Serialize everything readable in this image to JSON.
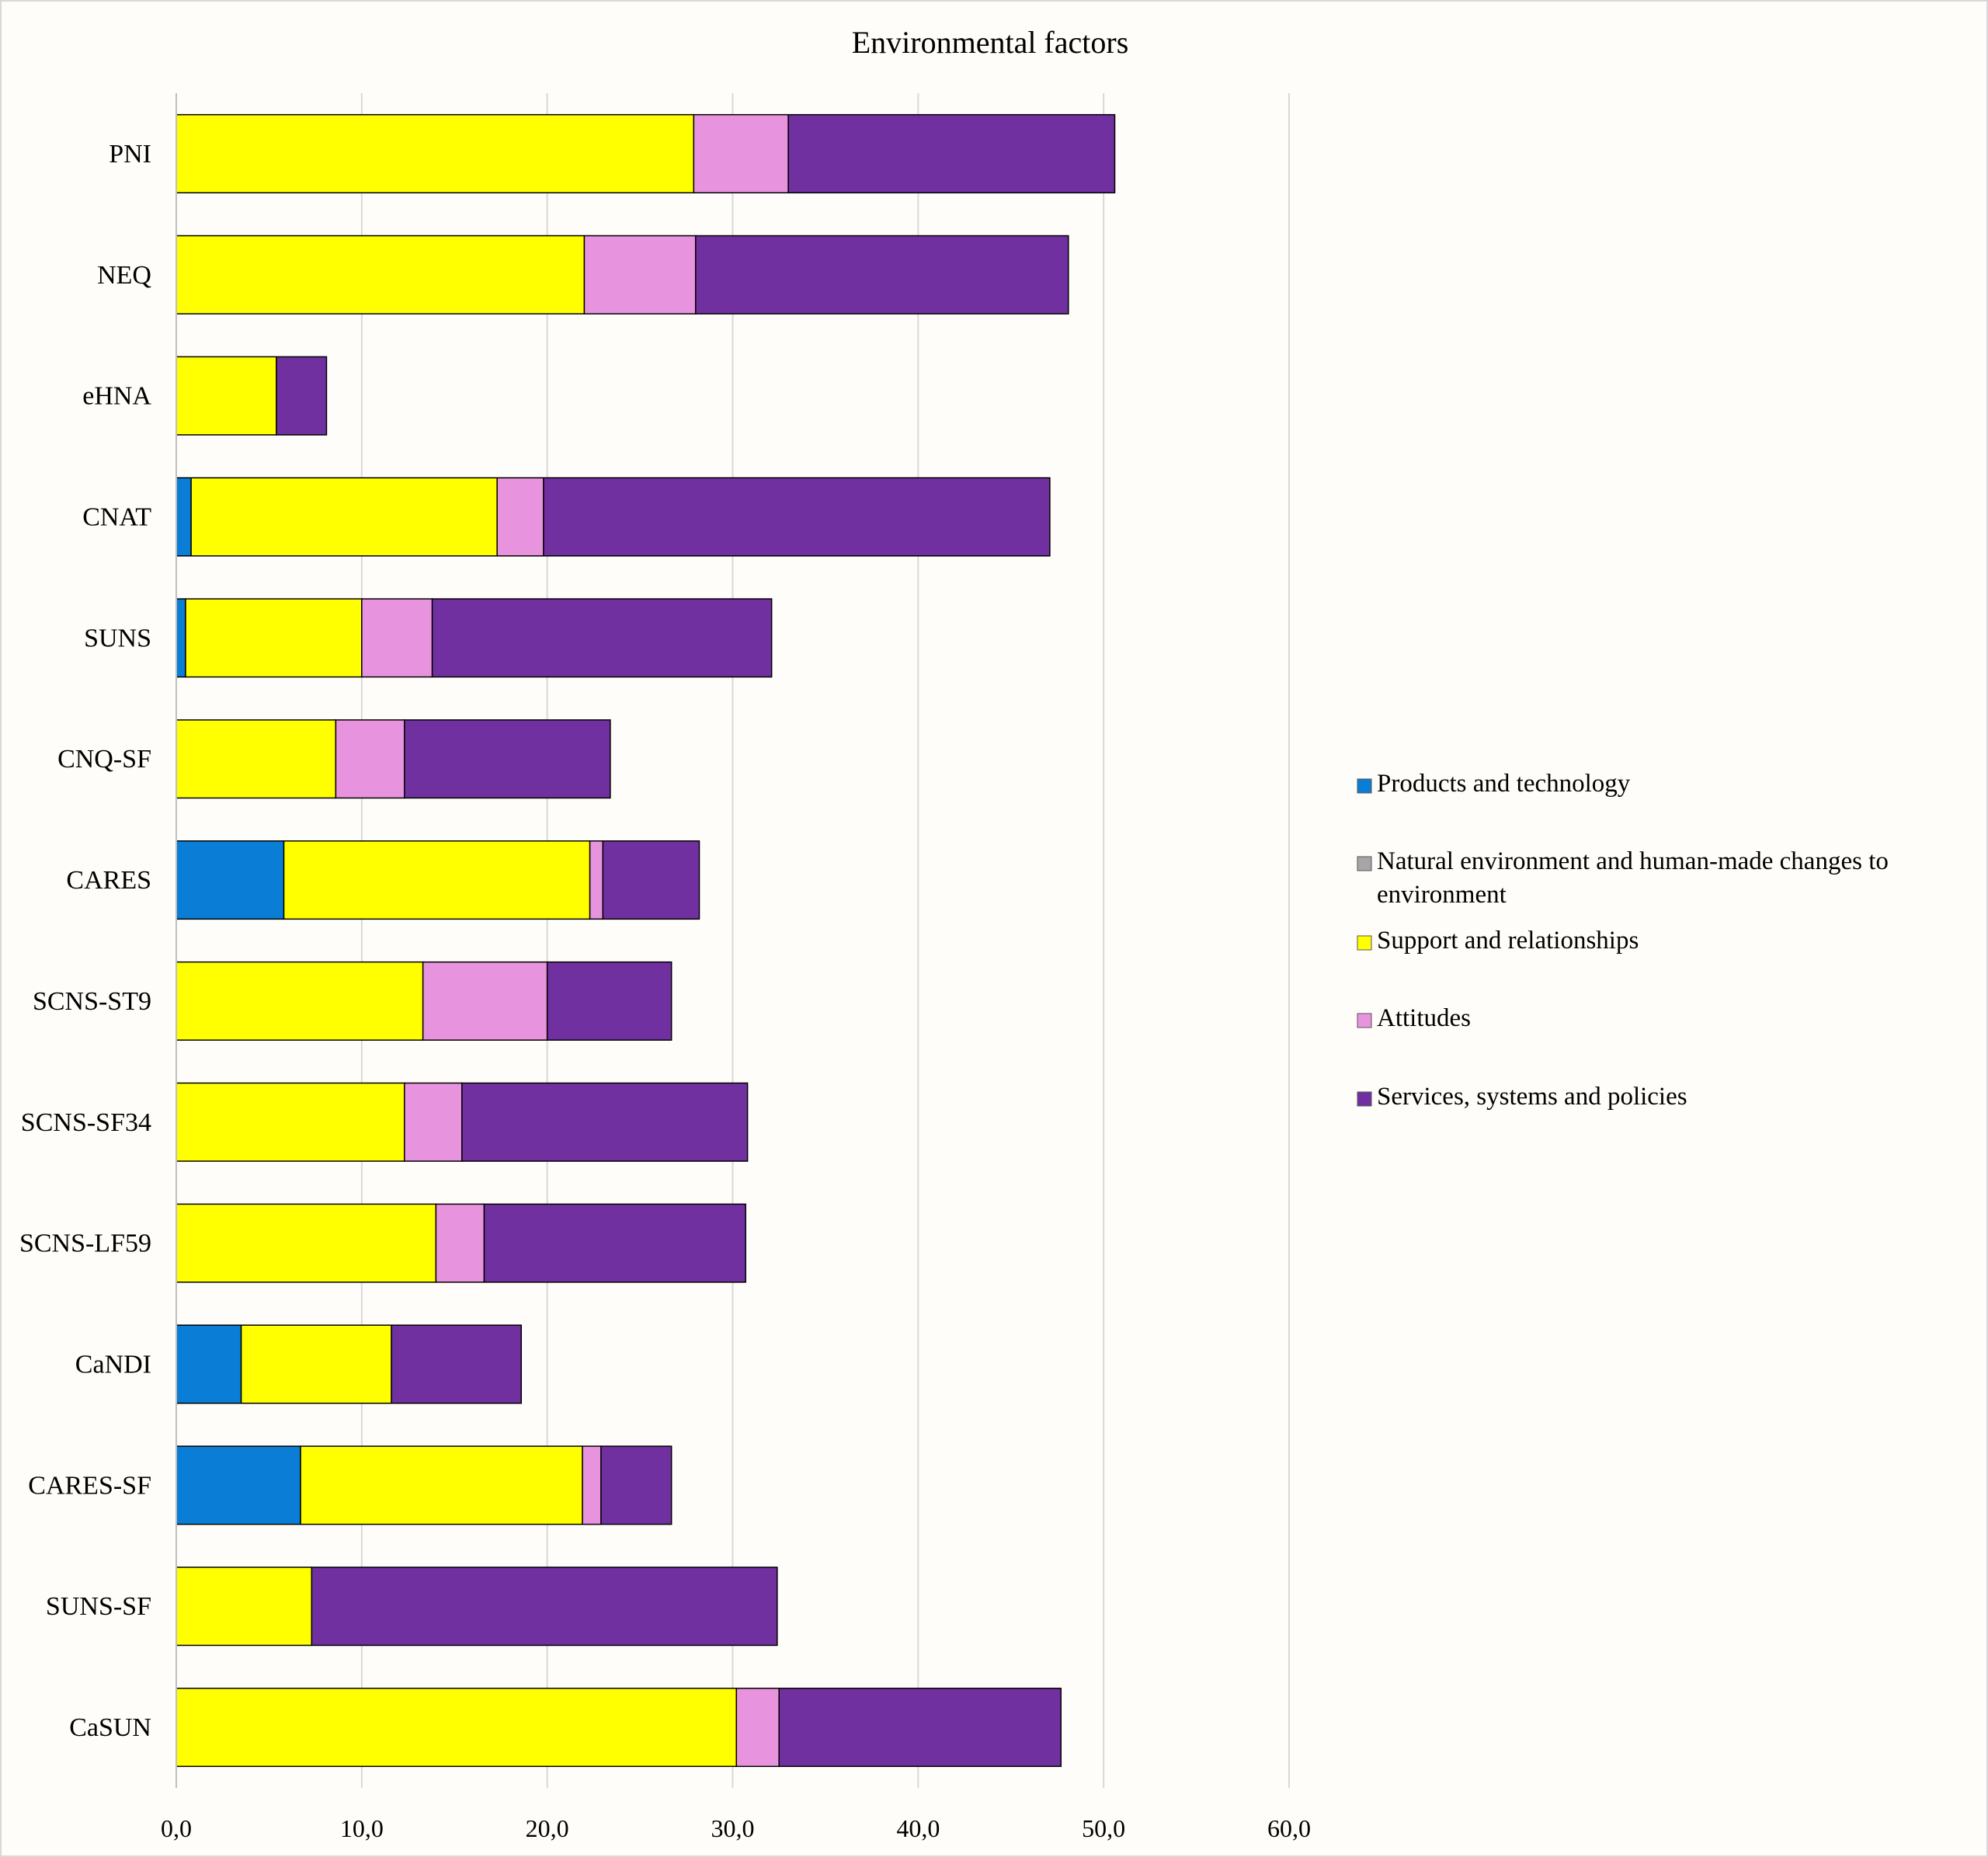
{
  "chart_data": {
    "type": "bar",
    "orientation": "horizontal",
    "stacked": true,
    "title": "Environmental factors",
    "xlabel": "",
    "ylabel": "",
    "xlim": [
      0,
      60
    ],
    "grid": true,
    "legend_position": "right",
    "x_ticks": [
      "0,0",
      "10,0",
      "20,0",
      "30,0",
      "40,0",
      "50,0",
      "60,0"
    ],
    "categories": [
      "PNI",
      "NEQ",
      "eHNA",
      "CNAT",
      "SUNS",
      "CNQ-SF",
      "CARES",
      "SCNS-ST9",
      "SCNS-SF34",
      "SCNS-LF59",
      "CaNDI",
      "CARES-SF",
      "SUNS-SF",
      "CaSUN"
    ],
    "series": [
      {
        "name": "Products and technology",
        "color": "#0a7ed6",
        "values": [
          0,
          0,
          0,
          0.8,
          0.5,
          0,
          5.8,
          0,
          0,
          0,
          3.5,
          6.7,
          0,
          0
        ]
      },
      {
        "name": "Natural environment and human-made changes to environment",
        "color": "#a6a6a6",
        "values": [
          0,
          0,
          0,
          0,
          0,
          0,
          0,
          0,
          0,
          0,
          0,
          0,
          0,
          0
        ]
      },
      {
        "name": "Support and relationships",
        "color": "#ffff00",
        "values": [
          27.9,
          22.0,
          5.4,
          16.5,
          9.5,
          8.6,
          16.5,
          13.3,
          12.3,
          14.0,
          8.1,
          15.2,
          7.3,
          30.2
        ]
      },
      {
        "name": "Attitudes",
        "color": "#e893de",
        "values": [
          5.1,
          6.0,
          0,
          2.5,
          3.8,
          3.7,
          0.7,
          6.7,
          3.1,
          2.6,
          0,
          1.0,
          0,
          2.3
        ]
      },
      {
        "name": "Services, systems and policies",
        "color": "#7030a0",
        "values": [
          17.6,
          20.1,
          2.7,
          27.3,
          18.3,
          11.1,
          5.2,
          6.7,
          15.4,
          14.1,
          7.0,
          3.8,
          25.1,
          15.2
        ]
      }
    ]
  }
}
